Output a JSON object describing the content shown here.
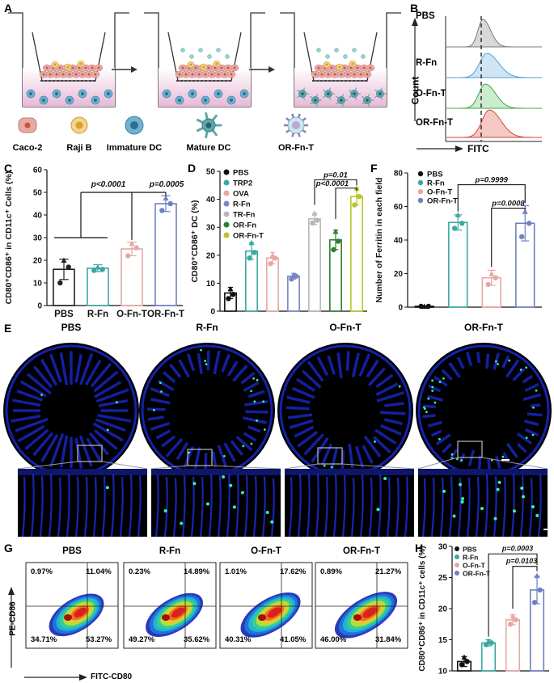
{
  "panels": {
    "A": "A",
    "B": "B",
    "C": "C",
    "D": "D",
    "E": "E",
    "F": "F",
    "G": "G",
    "H": "H"
  },
  "panelA": {
    "legend": [
      "Caco-2",
      "Raji B",
      "Immature DC",
      "Mature DC",
      "OR-Fn-T"
    ],
    "colors": {
      "caco": "#e8a9a0",
      "caco_nucleus": "#c9524b",
      "raji": "#f3d48a",
      "raji_nucleus": "#d9a030",
      "idc": "#6fb2cf",
      "mdc": "#5fa8ad",
      "orfnt": "#8f7fb5",
      "medium": "#f2d7e8"
    }
  },
  "panelB": {
    "rows": [
      "PBS",
      "R-Fn",
      "O-Fn-T",
      "OR-Fn-T"
    ],
    "ylabel": "Count",
    "xlabel": "FITC",
    "colors": [
      "#7a7a7a",
      "#4e9fd6",
      "#3fa64b",
      "#d6453c"
    ],
    "fills": [
      "#d8d8d8",
      "#cfe4f5",
      "#cdeccd",
      "#f6c9c3"
    ]
  },
  "chart_data": [
    {
      "panel": "C",
      "type": "bar",
      "categories": [
        "PBS",
        "R-Fn",
        "O-Fn-T",
        "OR-Fn-T"
      ],
      "values": [
        16,
        16.5,
        25,
        45
      ],
      "errors": [
        4.5,
        1.5,
        3,
        3.5
      ],
      "points": [
        [
          10,
          17,
          20
        ],
        [
          15.5,
          16,
          17
        ],
        [
          22,
          25.5,
          27.5
        ],
        [
          42,
          45,
          47.5
        ]
      ],
      "colors": [
        "#222222",
        "#3aa9a2",
        "#e5a8a4",
        "#6f7fc4"
      ],
      "ylabel": "CD80⁺CD86⁺ in CD11c⁺ Cells (%)",
      "ylim": [
        0,
        60
      ],
      "yticks": [
        0,
        10,
        20,
        30,
        40,
        50,
        60
      ],
      "annotations": [
        "p<0.0001",
        "p=0.0005"
      ]
    },
    {
      "panel": "D",
      "type": "bar",
      "categories": [
        "PBS",
        "TRP2",
        "OVA",
        "R-Fn",
        "TR-Fn",
        "OR-Fn",
        "OR-Fn-T"
      ],
      "values": [
        6.5,
        21.5,
        19,
        12.5,
        33,
        25.5,
        41
      ],
      "errors": [
        2,
        3,
        2,
        1,
        2,
        3.5,
        3
      ],
      "points": [
        [
          4.5,
          6,
          8
        ],
        [
          19,
          21,
          24.5
        ],
        [
          17,
          19,
          20
        ],
        [
          11.5,
          12.5,
          13
        ],
        [
          31.5,
          32.5,
          35
        ],
        [
          22,
          25,
          28.5
        ],
        [
          38,
          41,
          44
        ]
      ],
      "colors": [
        "#111111",
        "#3aa9a2",
        "#e5a8a4",
        "#7a82c8",
        "#b8b8b8",
        "#2f7d32",
        "#b8c62a"
      ],
      "ylabel": "CD80⁺CD86⁺ DC (%)",
      "ylim": [
        0,
        50
      ],
      "yticks": [
        0,
        10,
        20,
        30,
        40,
        50
      ],
      "legend": [
        "PBS",
        "TRP2",
        "OVA",
        "R-Fn",
        "TR-Fn",
        "OR-Fn",
        "OR-Fn-T"
      ],
      "annotations": [
        "p=0.01",
        "p<0.0001"
      ]
    },
    {
      "panel": "F",
      "type": "bar",
      "categories": [
        "PBS",
        "R-Fn",
        "O-Fn-T",
        "OR-Fn-T"
      ],
      "values": [
        0.5,
        50.5,
        17.5,
        50
      ],
      "errors": [
        0,
        4.5,
        4.5,
        10.5
      ],
      "points": [
        [
          0.5,
          0.5,
          0.5
        ],
        [
          47,
          50,
          55
        ],
        [
          13.5,
          17.5,
          20
        ],
        [
          42,
          50,
          57
        ]
      ],
      "colors": [
        "#111111",
        "#3aa9a2",
        "#e5a8a4",
        "#6f7fc4"
      ],
      "ylabel": "Number of Ferritin in each field",
      "ylim": [
        0,
        80
      ],
      "yticks": [
        0,
        20,
        40,
        60,
        80
      ],
      "legend": [
        "PBS",
        "R-Fn",
        "O-Fn-T",
        "OR-Fn-T"
      ],
      "annotations": [
        "p=0.9999",
        "p=0.0008"
      ]
    },
    {
      "panel": "H",
      "type": "bar",
      "categories": [
        "PBS",
        "R-Fn",
        "O-Fn-T",
        "OR-Fn-T"
      ],
      "values": [
        11.5,
        14.5,
        18.2,
        23
      ],
      "errors": [
        0.8,
        0.5,
        0.8,
        2.2
      ],
      "points": [
        [
          11,
          11.5,
          12.2
        ],
        [
          14.2,
          14.5,
          14.8
        ],
        [
          17.5,
          18.2,
          18.8
        ],
        [
          21,
          23,
          25.3
        ]
      ],
      "colors": [
        "#111111",
        "#3aa9a2",
        "#e5a8a4",
        "#6f7fc4"
      ],
      "ylabel": "CD80⁺CD86⁺ in CD11c⁺ cells (%)",
      "ylim": [
        10,
        30
      ],
      "yticks": [
        10,
        15,
        20,
        25,
        30
      ],
      "legend": [
        "PBS",
        "R-Fn",
        "O-Fn-T",
        "OR-Fn-T"
      ],
      "annotations": [
        "p=0.0003",
        "p=0.0103"
      ]
    }
  ],
  "panelE": {
    "titles": [
      "PBS",
      "R-Fn",
      "O-Fn-T",
      "OR-Fn-T"
    ],
    "tissue_color": "#1a2bd6",
    "signal_color": "#3cf0a0"
  },
  "panelG": {
    "titles": [
      "PBS",
      "R-Fn",
      "O-Fn-T",
      "OR-Fn-T"
    ],
    "ylabel": "PE-CD86",
    "xlabel": "FITC-CD80",
    "quadrants": [
      {
        "ul": "0.97%",
        "ur": "11.04%",
        "ll": "34.71%",
        "lr": "53.27%"
      },
      {
        "ul": "0.23%",
        "ur": "14.89%",
        "ll": "49.27%",
        "lr": "35.62%"
      },
      {
        "ul": "1.01%",
        "ur": "17.62%",
        "ll": "40.31%",
        "lr": "41.05%"
      },
      {
        "ul": "0.89%",
        "ur": "21.27%",
        "ll": "46.00%",
        "lr": "31.84%"
      }
    ]
  }
}
